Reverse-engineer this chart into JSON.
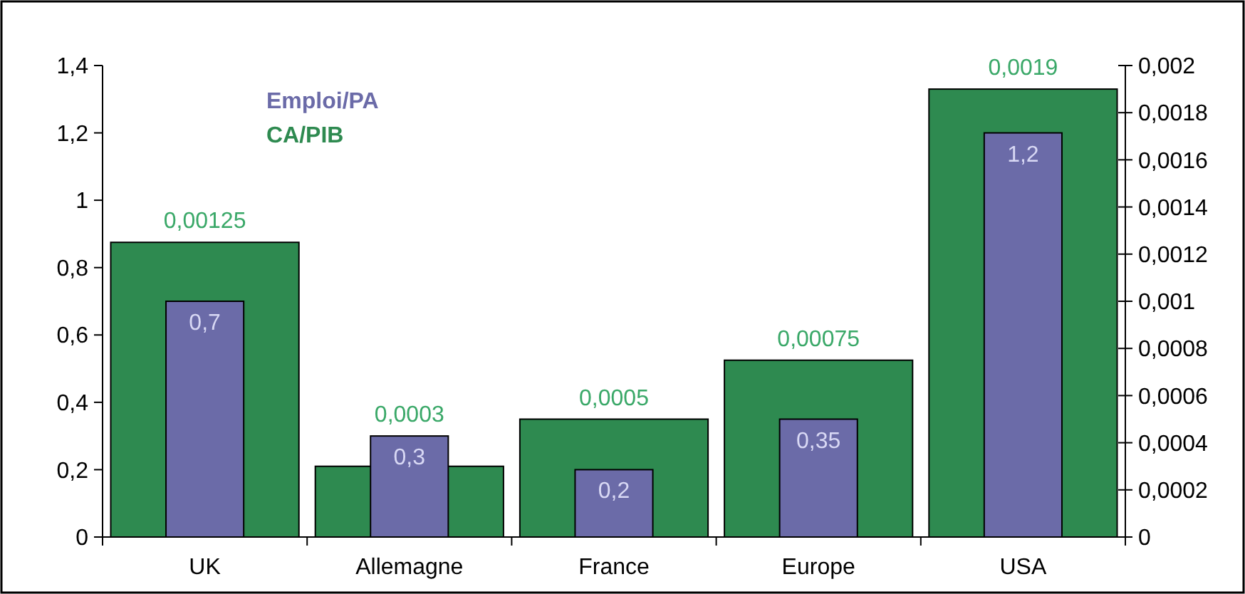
{
  "chart_data": {
    "type": "bar",
    "categories": [
      "UK",
      "Allemagne",
      "France",
      "Europe",
      "USA"
    ],
    "series": [
      {
        "name": "Emploi/PA",
        "color": "#6b6ba8",
        "values": [
          0.7,
          0.3,
          0.2,
          0.35,
          1.2
        ],
        "value_labels": [
          "0,7",
          "0,3",
          "0,2",
          "0,35",
          "1,2"
        ]
      },
      {
        "name": "CA/PIB",
        "color": "#2e8a50",
        "axis": "y2",
        "values": [
          0.00125,
          0.0003,
          0.0005,
          0.00075,
          0.0019
        ],
        "value_labels": [
          "0,00125",
          "0,0003",
          "0,0005",
          "0,00075",
          "0,0019"
        ]
      }
    ],
    "ylim": [
      0,
      1.4
    ],
    "yticks": [
      0,
      {
        "value": 0.2,
        "label": "0,2"
      },
      {
        "value": 0.4,
        "label": "0,4"
      },
      {
        "value": 0.6,
        "label": "0,6"
      },
      {
        "value": 0.8,
        "label": "0,8"
      },
      1,
      {
        "value": 1.2,
        "label": "1,2"
      },
      {
        "value": 1.4,
        "label": "1,4"
      }
    ],
    "y2lim": [
      0,
      0.002
    ],
    "y2ticks": [
      0,
      {
        "value": 0.0002,
        "label": "0,0002"
      },
      {
        "value": 0.0004,
        "label": "0,0004"
      },
      {
        "value": 0.0006,
        "label": "0,0006"
      },
      {
        "value": 0.0008,
        "label": "0,0008"
      },
      {
        "value": 0.001,
        "label": "0,001"
      },
      {
        "value": 0.0012,
        "label": "0,0012"
      },
      {
        "value": 0.0014,
        "label": "0,0014"
      },
      {
        "value": 0.0016,
        "label": "0,0016"
      },
      {
        "value": 0.0018,
        "label": "0,0018"
      },
      {
        "value": 0.002,
        "label": "0,002"
      }
    ],
    "legend": "top left",
    "grid": false
  }
}
